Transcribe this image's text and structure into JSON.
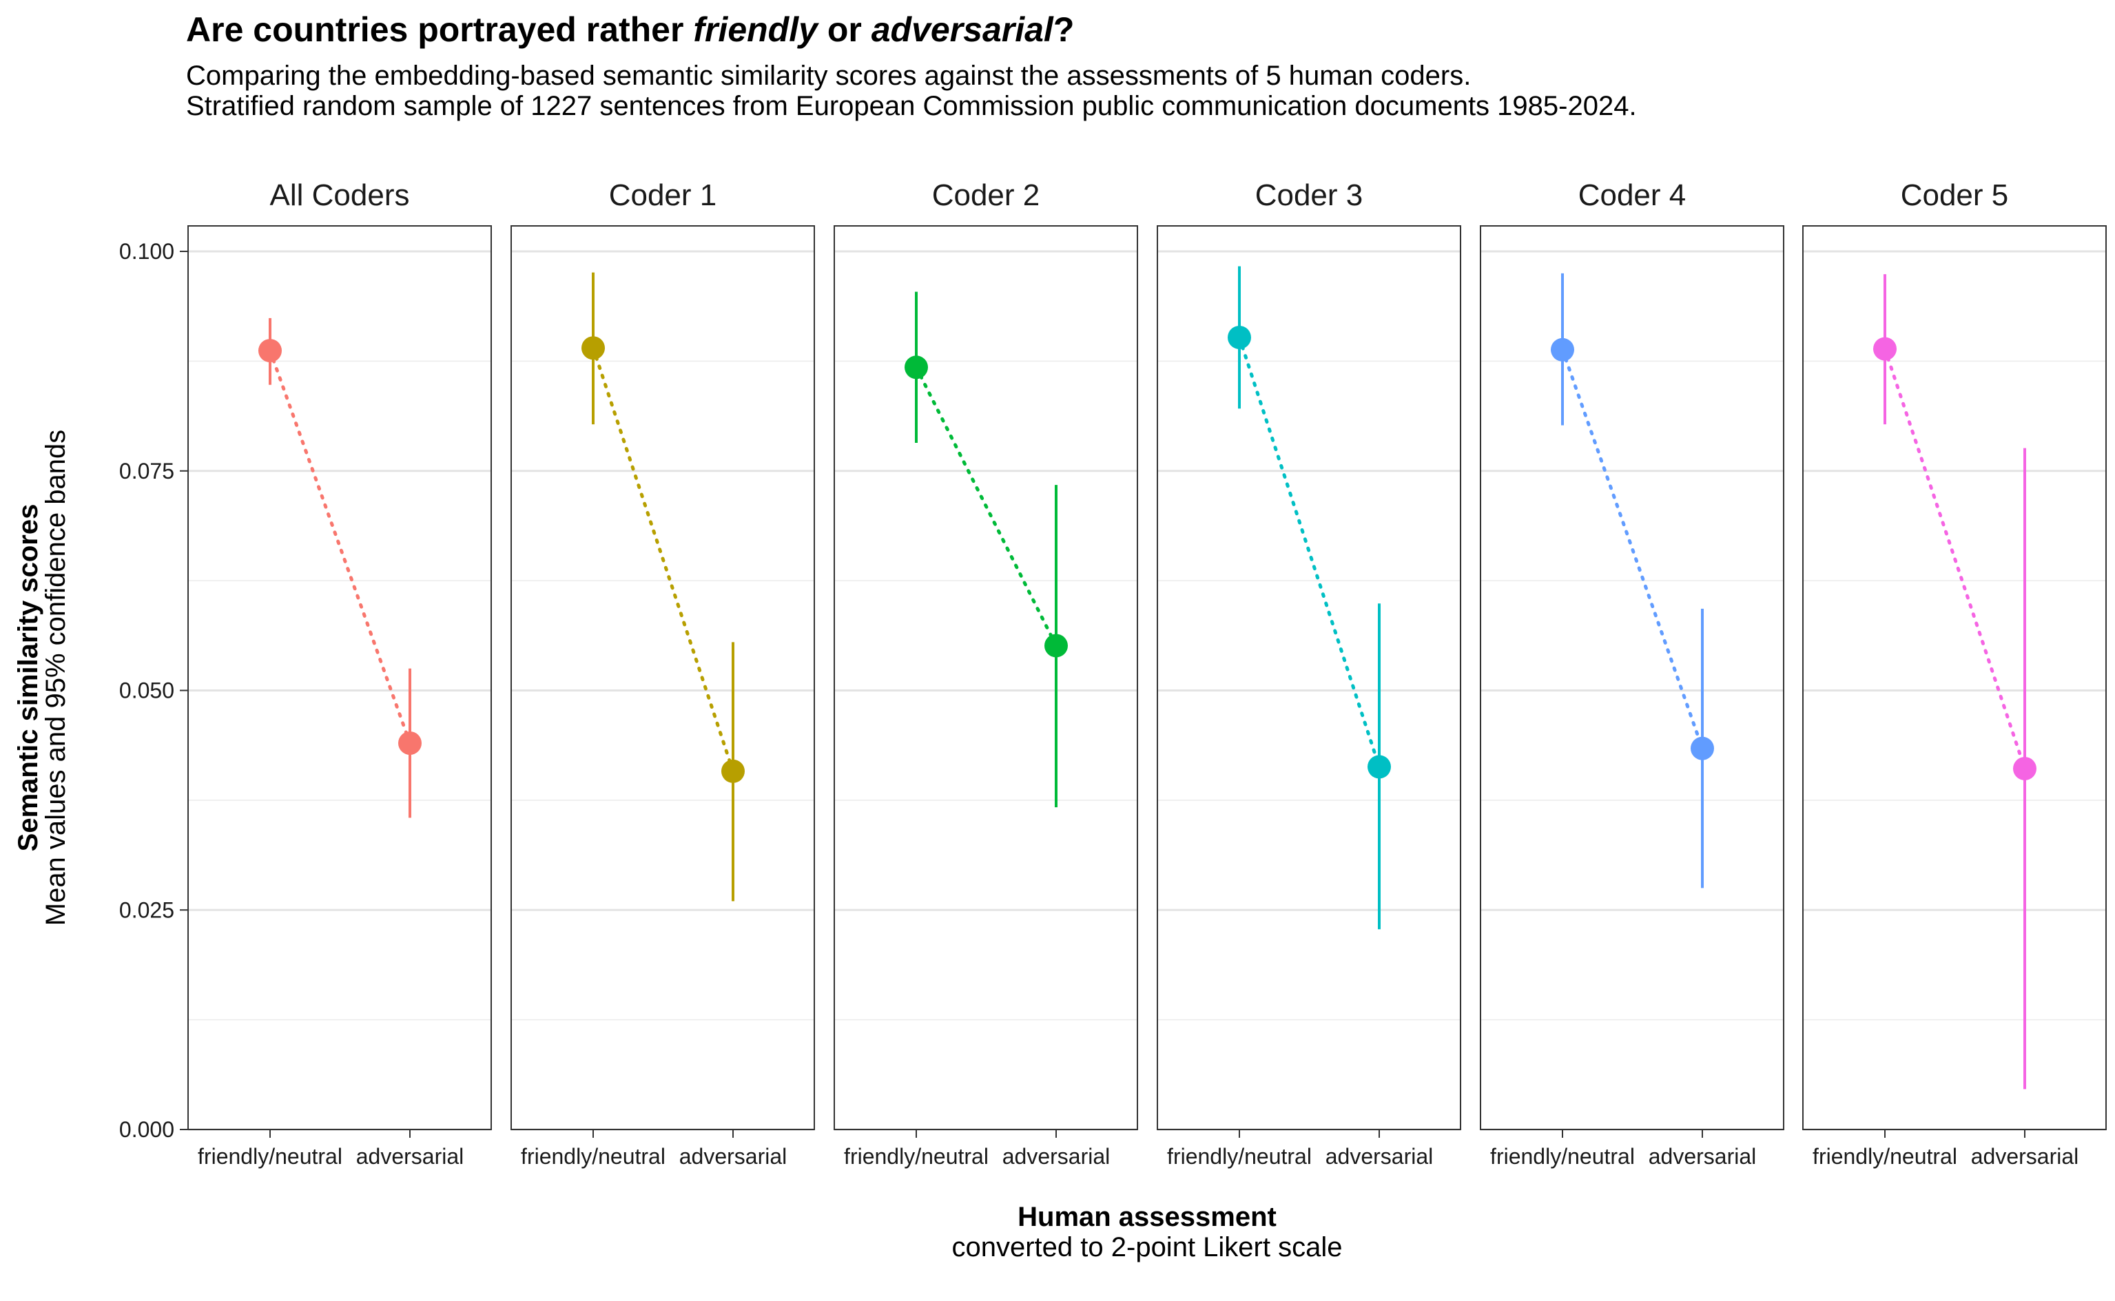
{
  "title": {
    "prefix": "Are countries portrayed rather ",
    "em1": "friendly",
    "middle": " or ",
    "em2": "adversarial",
    "suffix": "?"
  },
  "subtitle": [
    "Comparing the embedding-based semantic similarity scores against the assessments of 5 human coders.",
    "Stratified random sample of 1227 sentences from European Commission public communication documents 1985-2024."
  ],
  "chart_data": {
    "type": "scatter",
    "facets": [
      "All Coders",
      "Coder 1",
      "Coder 2",
      "Coder 3",
      "Coder 4",
      "Coder 5"
    ],
    "categories": [
      "friendly/neutral",
      "adversarial"
    ],
    "ylim": [
      0,
      0.1
    ],
    "yticks": [
      "0.000",
      "0.025",
      "0.050",
      "0.075",
      "0.100"
    ],
    "ylabel": "Semantic similarity scores",
    "ylabel_sub": "Mean values and 95% confidence bands",
    "xlabel": "Human assessment",
    "xlabel_sub": "converted to 2-point Likert scale",
    "grid": true,
    "legend": "none",
    "series": [
      {
        "facet": "All Coders",
        "color": "#F8766D",
        "points": [
          {
            "mean": 0.0887,
            "lower": 0.0848,
            "upper": 0.0924
          },
          {
            "mean": 0.044,
            "lower": 0.0355,
            "upper": 0.0525
          }
        ]
      },
      {
        "facet": "Coder 1",
        "color": "#B79F00",
        "points": [
          {
            "mean": 0.089,
            "lower": 0.0803,
            "upper": 0.0976
          },
          {
            "mean": 0.0408,
            "lower": 0.026,
            "upper": 0.0555
          }
        ]
      },
      {
        "facet": "Coder 2",
        "color": "#00BA38",
        "points": [
          {
            "mean": 0.0868,
            "lower": 0.0782,
            "upper": 0.0954
          },
          {
            "mean": 0.0551,
            "lower": 0.0367,
            "upper": 0.0734
          }
        ]
      },
      {
        "facet": "Coder 3",
        "color": "#00BFC4",
        "points": [
          {
            "mean": 0.0902,
            "lower": 0.0821,
            "upper": 0.0983
          },
          {
            "mean": 0.0413,
            "lower": 0.0228,
            "upper": 0.0599
          }
        ]
      },
      {
        "facet": "Coder 4",
        "color": "#619CFF",
        "points": [
          {
            "mean": 0.0888,
            "lower": 0.0802,
            "upper": 0.0975
          },
          {
            "mean": 0.0434,
            "lower": 0.0275,
            "upper": 0.0593
          }
        ]
      },
      {
        "facet": "Coder 5",
        "color": "#F564E3",
        "points": [
          {
            "mean": 0.0889,
            "lower": 0.0803,
            "upper": 0.0974
          },
          {
            "mean": 0.0411,
            "lower": 0.0046,
            "upper": 0.0776
          }
        ]
      }
    ]
  }
}
